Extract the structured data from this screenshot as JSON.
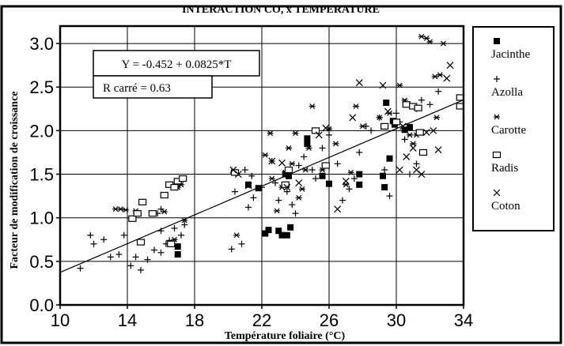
{
  "chart_data": {
    "type": "scatter",
    "title": "INTERACTION CO, x TEMPERATURE",
    "xlabel": "Température foliaire (°C)",
    "ylabel": "Facteur de modification de croissance",
    "xlim": [
      10,
      34
    ],
    "ylim": [
      0,
      3.2
    ],
    "x_ticks": [
      "10",
      "14",
      "18",
      "22",
      "26",
      "30",
      "34"
    ],
    "y_ticks": [
      "0.0",
      "0.5",
      "1.0",
      "1.5",
      "2.0",
      "2.5",
      "3.0"
    ],
    "grid": true,
    "legend_position": "right",
    "regression": {
      "intercept": -0.452,
      "slope": 0.0825,
      "equation_label": "Y = -0.452 + 0.0825*T",
      "r2_label": "R carré = 0.63"
    },
    "series": [
      {
        "name": "Jacinthe",
        "marker": "filled-square",
        "points": [
          [
            17.0,
            0.58
          ],
          [
            17.0,
            0.67
          ],
          [
            21.2,
            1.38
          ],
          [
            21.8,
            1.34
          ],
          [
            22.2,
            0.82
          ],
          [
            22.4,
            0.86
          ],
          [
            23.0,
            0.85
          ],
          [
            23.2,
            0.8
          ],
          [
            23.4,
            1.5
          ],
          [
            23.5,
            0.8
          ],
          [
            23.6,
            1.48
          ],
          [
            23.7,
            0.89
          ],
          [
            24.7,
            1.85
          ],
          [
            24.7,
            1.91
          ],
          [
            25.6,
            1.48
          ],
          [
            26.0,
            1.39
          ],
          [
            27.8,
            1.5
          ],
          [
            27.8,
            1.38
          ],
          [
            29.2,
            1.48
          ],
          [
            29.3,
            1.35
          ],
          [
            29.4,
            2.32
          ],
          [
            29.6,
            1.68
          ],
          [
            29.8,
            2.11
          ],
          [
            29.9,
            2.07
          ],
          [
            30.5,
            2.01
          ],
          [
            30.8,
            2.04
          ]
        ]
      },
      {
        "name": "Azolla",
        "marker": "plus",
        "points": [
          [
            11.2,
            0.42
          ],
          [
            11.8,
            0.8
          ],
          [
            12.0,
            0.7
          ],
          [
            12.6,
            0.75
          ],
          [
            13.0,
            0.55
          ],
          [
            13.5,
            0.58
          ],
          [
            13.8,
            0.8
          ],
          [
            14.2,
            0.45
          ],
          [
            14.5,
            0.55
          ],
          [
            14.8,
            0.4
          ],
          [
            15.2,
            0.52
          ],
          [
            15.6,
            0.63
          ],
          [
            16.0,
            0.6
          ],
          [
            16.0,
            0.85
          ],
          [
            16.3,
            0.7
          ],
          [
            16.5,
            0.74
          ],
          [
            16.8,
            0.88
          ],
          [
            17.2,
            0.8
          ],
          [
            17.4,
            0.92
          ],
          [
            15.8,
            1.05
          ],
          [
            16.0,
            1.1
          ],
          [
            20.2,
            0.64
          ],
          [
            20.8,
            0.7
          ],
          [
            21.2,
            1.12
          ],
          [
            21.5,
            1.23
          ],
          [
            21.0,
            1.55
          ],
          [
            21.4,
            1.48
          ],
          [
            22.0,
            1.35
          ],
          [
            22.6,
            1.65
          ],
          [
            22.8,
            1.4
          ],
          [
            23.0,
            1.2
          ],
          [
            23.5,
            1.3
          ],
          [
            23.8,
            1.15
          ],
          [
            24.0,
            1.05
          ],
          [
            24.2,
            1.6
          ],
          [
            24.5,
            1.7
          ],
          [
            25.0,
            1.55
          ],
          [
            25.2,
            1.45
          ],
          [
            25.6,
            1.8
          ],
          [
            26.0,
            1.95
          ],
          [
            26.5,
            1.62
          ],
          [
            26.8,
            1.2
          ],
          [
            27.2,
            1.33
          ],
          [
            27.5,
            1.45
          ],
          [
            27.8,
            1.75
          ],
          [
            28.2,
            2.05
          ],
          [
            28.5,
            2.0
          ],
          [
            29.0,
            2.15
          ],
          [
            29.3,
            1.55
          ],
          [
            29.6,
            1.25
          ],
          [
            30.0,
            2.2
          ],
          [
            30.2,
            2.1
          ],
          [
            30.5,
            1.9
          ],
          [
            30.8,
            1.5
          ],
          [
            31.2,
            1.62
          ],
          [
            31.5,
            2.35
          ],
          [
            32.0,
            2.3
          ],
          [
            32.5,
            2.45
          ],
          [
            31.2,
            2.25
          ],
          [
            20.4,
            1.3
          ]
        ]
      },
      {
        "name": "Carotte",
        "marker": "asterisk",
        "points": [
          [
            13.3,
            1.1
          ],
          [
            13.6,
            1.1
          ],
          [
            13.9,
            1.09
          ],
          [
            14.5,
            1.08
          ],
          [
            16.2,
            1.07
          ],
          [
            16.8,
            0.75
          ],
          [
            17.0,
            1.35
          ],
          [
            17.2,
            1.38
          ],
          [
            17.4,
            0.97
          ],
          [
            20.5,
            0.8
          ],
          [
            22.2,
            1.72
          ],
          [
            22.5,
            1.97
          ],
          [
            22.6,
            1.45
          ],
          [
            22.9,
            1.08
          ],
          [
            23.2,
            1.35
          ],
          [
            23.4,
            1.52
          ],
          [
            23.6,
            1.8
          ],
          [
            23.8,
            1.62
          ],
          [
            24.0,
            1.97
          ],
          [
            24.2,
            1.23
          ],
          [
            24.4,
            1.33
          ],
          [
            24.6,
            1.55
          ],
          [
            24.8,
            1.8
          ],
          [
            25.0,
            2.28
          ],
          [
            25.6,
            1.55
          ],
          [
            26.0,
            2.02
          ],
          [
            26.4,
            1.85
          ],
          [
            27.0,
            1.38
          ],
          [
            27.3,
            1.52
          ],
          [
            27.6,
            2.28
          ],
          [
            28.0,
            2.05
          ],
          [
            29.0,
            2.15
          ],
          [
            29.6,
            2.2
          ],
          [
            30.2,
            2.52
          ],
          [
            30.5,
            2.35
          ],
          [
            30.8,
            1.95
          ],
          [
            31.0,
            1.85
          ],
          [
            31.2,
            1.95
          ],
          [
            31.5,
            3.08
          ],
          [
            31.8,
            3.06
          ],
          [
            32.0,
            3.02
          ],
          [
            32.3,
            2.62
          ],
          [
            32.6,
            2.64
          ],
          [
            32.4,
            2.15
          ],
          [
            32.8,
            3.0
          ]
        ]
      },
      {
        "name": "Radis",
        "marker": "open-square",
        "points": [
          [
            14.3,
            0.99
          ],
          [
            14.6,
            1.05
          ],
          [
            14.9,
            1.18
          ],
          [
            15.5,
            1.05
          ],
          [
            16.2,
            1.26
          ],
          [
            16.5,
            1.38
          ],
          [
            16.8,
            1.35
          ],
          [
            17.0,
            1.42
          ],
          [
            17.3,
            1.45
          ],
          [
            14.8,
            0.72
          ],
          [
            16.6,
            0.7
          ],
          [
            20.4,
            1.52
          ],
          [
            23.4,
            1.38
          ],
          [
            23.6,
            1.55
          ],
          [
            25.2,
            2.0
          ],
          [
            25.8,
            1.6
          ],
          [
            29.3,
            2.05
          ],
          [
            30.0,
            2.1
          ],
          [
            30.6,
            2.3
          ],
          [
            31.0,
            2.28
          ],
          [
            31.3,
            2.26
          ],
          [
            31.6,
            1.75
          ],
          [
            31.4,
            1.98
          ],
          [
            33.8,
            2.28
          ],
          [
            33.8,
            2.38
          ]
        ]
      },
      {
        "name": "Coton",
        "marker": "cross",
        "points": [
          [
            20.3,
            1.55
          ],
          [
            20.6,
            1.5
          ],
          [
            21.2,
            1.37
          ],
          [
            22.6,
            1.65
          ],
          [
            23.2,
            1.63
          ],
          [
            23.5,
            1.35
          ],
          [
            24.2,
            1.4
          ],
          [
            25.4,
            1.95
          ],
          [
            25.8,
            2.03
          ],
          [
            26.5,
            1.1
          ],
          [
            27.0,
            1.42
          ],
          [
            27.4,
            2.15
          ],
          [
            27.8,
            2.55
          ],
          [
            29.2,
            2.52
          ],
          [
            29.5,
            2.22
          ],
          [
            30.2,
            1.55
          ],
          [
            30.4,
            2.05
          ],
          [
            30.6,
            1.7
          ],
          [
            31.0,
            1.8
          ],
          [
            31.2,
            1.55
          ],
          [
            31.5,
            1.5
          ],
          [
            31.8,
            1.98
          ],
          [
            32.2,
            2.0
          ],
          [
            32.5,
            1.78
          ],
          [
            33.0,
            2.6
          ],
          [
            33.2,
            2.75
          ]
        ]
      }
    ]
  }
}
